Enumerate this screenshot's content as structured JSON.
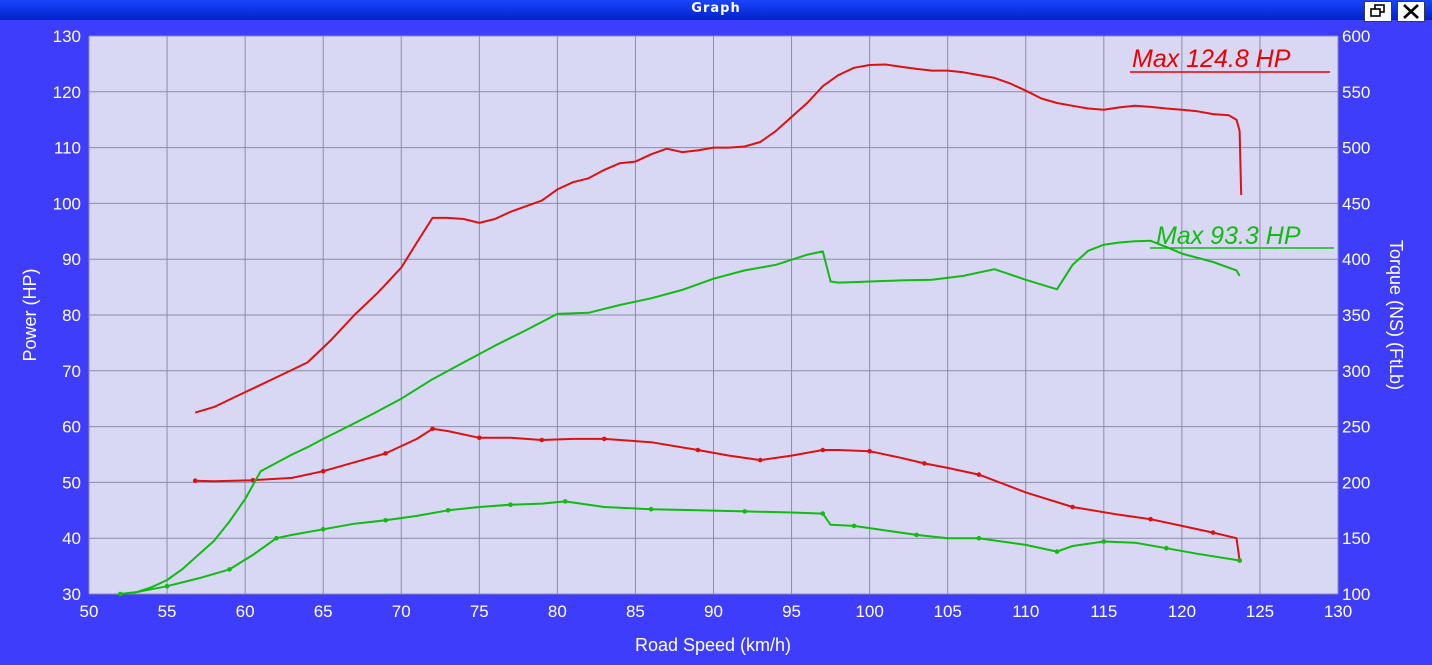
{
  "window": {
    "title": "Graph",
    "colors": {
      "background": "#3d3dfb",
      "plot": "#d8d8f4",
      "grid": "#8c8ca8",
      "titlebar": "#0a2fe0"
    },
    "buttons": [
      {
        "icon": "restore-icon"
      },
      {
        "icon": "close-icon"
      }
    ]
  },
  "chart_data": {
    "type": "line",
    "xlabel": "Road Speed (km/h)",
    "ylabel": "Power (HP)",
    "y2label": "Torque (NS) (FtLb)",
    "xlim": [
      50,
      130
    ],
    "ylim": [
      30,
      130
    ],
    "y2lim": [
      100,
      600
    ],
    "xticks": [
      "50",
      "55",
      "60",
      "65",
      "70",
      "75",
      "80",
      "85",
      "90",
      "95",
      "100",
      "105",
      "110",
      "115",
      "120",
      "125",
      "130"
    ],
    "yticks": [
      "30",
      "40",
      "50",
      "60",
      "70",
      "80",
      "90",
      "100",
      "110",
      "120",
      "130"
    ],
    "y2ticks": [
      "100",
      "150",
      "200",
      "250",
      "300",
      "350",
      "400",
      "450",
      "500",
      "550",
      "600"
    ],
    "grid": true,
    "annotations": [
      {
        "text": "Max 124.8 HP",
        "color": "#ee0000"
      },
      {
        "text": "Max 93.3 HP",
        "color": "#11bb11"
      }
    ],
    "series": [
      {
        "axis": "power",
        "color": "#dd1111",
        "x": [
          56.8,
          58,
          59.5,
          61,
          62.5,
          64,
          65.5,
          67,
          68.5,
          70,
          71,
          72,
          73,
          74,
          75,
          76,
          77,
          78,
          79,
          80,
          81,
          82,
          83,
          84,
          85,
          86,
          87,
          88,
          89,
          90,
          91,
          92,
          93,
          94,
          95,
          96,
          97,
          98,
          99,
          100,
          101,
          102,
          103,
          104,
          105,
          106,
          107,
          108,
          109,
          110,
          111,
          112,
          113,
          114,
          115,
          116,
          117,
          118,
          119,
          120,
          121,
          122,
          123,
          123.5,
          123.7,
          123.8
        ],
        "y": [
          62.5,
          63.5,
          65.5,
          67.5,
          69.5,
          71.5,
          75.5,
          80,
          84,
          88.5,
          93,
          97.4,
          97.4,
          97.2,
          96.5,
          97.2,
          98.5,
          99.5,
          100.5,
          102.5,
          103.8,
          104.5,
          106,
          107.2,
          107.5,
          108.8,
          109.8,
          109.2,
          109.5,
          110,
          110,
          110.2,
          111,
          113,
          115.5,
          118,
          121,
          123,
          124.3,
          124.8,
          124.9,
          124.5,
          124.1,
          123.8,
          123.8,
          123.5,
          123,
          122.5,
          121.5,
          120.2,
          118.8,
          118,
          117.5,
          117,
          116.8,
          117.2,
          117.5,
          117.3,
          117,
          116.8,
          116.5,
          116,
          115.8,
          115,
          113,
          101.5
        ]
      },
      {
        "axis": "torque",
        "color": "#dd1111",
        "x": [
          56.8,
          58,
          60.5,
          63,
          65,
          67,
          69,
          71,
          72,
          73,
          75,
          77,
          79,
          81,
          83,
          86,
          89,
          91,
          93,
          95,
          97,
          98,
          100,
          102,
          103.5,
          105,
          107,
          110,
          113,
          116,
          118,
          120,
          122,
          123.5,
          123.7
        ],
        "y": [
          201.5,
          201,
          202,
          204,
          210,
          218,
          226,
          239,
          248,
          246,
          240,
          240,
          238,
          239,
          239,
          236,
          229,
          224,
          220,
          224,
          229,
          229,
          228,
          222,
          217,
          213,
          207,
          191,
          178,
          171,
          167,
          161,
          155,
          150,
          130
        ]
      },
      {
        "axis": "power",
        "color": "#11bb11",
        "x": [
          52,
          53,
          54,
          55,
          56,
          57,
          58,
          59,
          60,
          61,
          62,
          63,
          64,
          65,
          66,
          68,
          70,
          72,
          74,
          76,
          78,
          80,
          82,
          84,
          86,
          88,
          90,
          92,
          94,
          96,
          97,
          97.5,
          98,
          99,
          100,
          102,
          104,
          106,
          108,
          110,
          112,
          113,
          114,
          115,
          116,
          117,
          118,
          119,
          120,
          122,
          123.5,
          123.7
        ],
        "y": [
          30,
          30.3,
          31.2,
          32.5,
          34.5,
          37,
          39.5,
          43,
          47,
          52,
          53.5,
          55,
          56.3,
          57.8,
          59.2,
          62,
          65,
          68.5,
          71.5,
          74.5,
          77.3,
          80.2,
          80.4,
          81.8,
          83,
          84.5,
          86.5,
          88,
          89,
          90.8,
          91.4,
          86,
          85.8,
          85.9,
          86,
          86.2,
          86.3,
          87,
          88.2,
          86.3,
          84.6,
          89,
          91.5,
          92.6,
          93,
          93.2,
          93.3,
          92.2,
          91,
          89.5,
          88,
          87
        ]
      },
      {
        "axis": "torque",
        "color": "#11bb11",
        "x": [
          52,
          53,
          55,
          57,
          59,
          60.5,
          62,
          63,
          65,
          67,
          69,
          71,
          73,
          75,
          77,
          79,
          80.5,
          83,
          86,
          89,
          92,
          95,
          97,
          97.5,
          99,
          101,
          103,
          105,
          107,
          110,
          112,
          113,
          115,
          117,
          119,
          121,
          123.7
        ],
        "y": [
          100,
          101.5,
          107,
          114,
          122,
          135,
          150,
          153,
          158,
          163,
          166,
          170,
          175,
          178,
          180,
          181,
          183,
          178,
          176,
          175,
          174,
          173,
          172,
          162,
          161,
          157,
          153,
          150,
          150,
          144,
          138,
          143,
          147,
          146,
          141,
          136,
          130
        ]
      }
    ]
  }
}
